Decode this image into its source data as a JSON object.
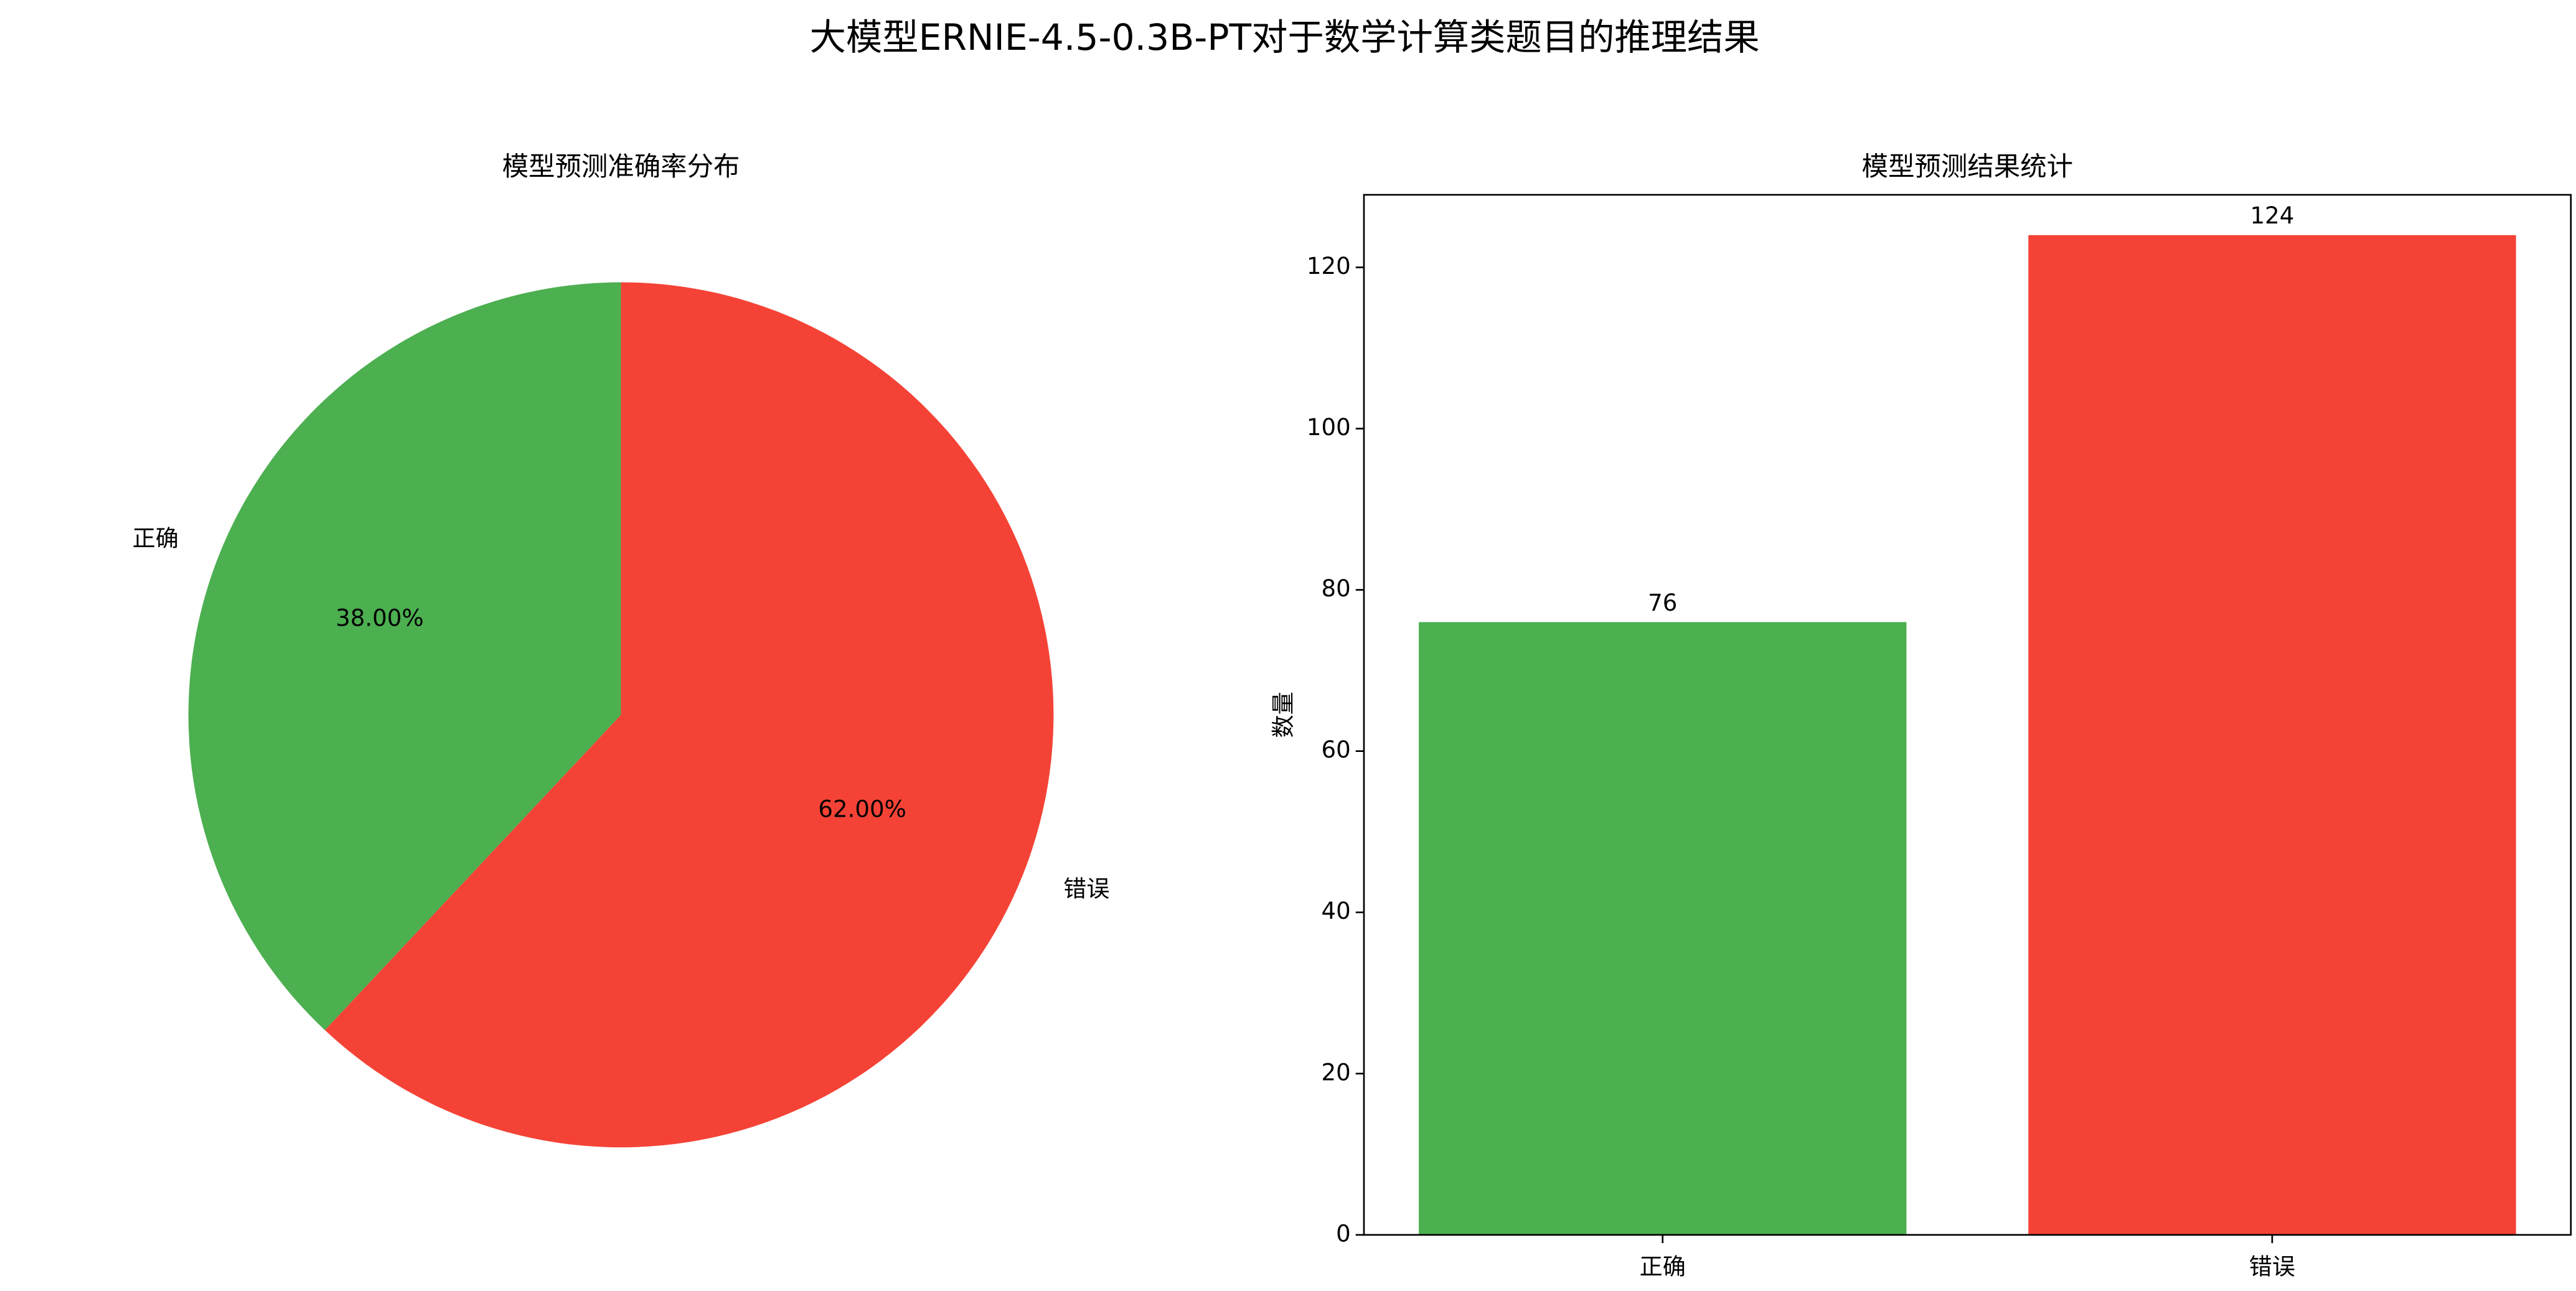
{
  "title": "大模型ERNIE-4.5-0.3B-PT对于数学计算类题目的推理结果",
  "chart_data": [
    {
      "type": "pie",
      "title": "模型预测准确率分布",
      "categories": [
        "正确",
        "错误"
      ],
      "values": [
        38,
        62
      ],
      "value_labels": [
        "38.00%",
        "62.00%"
      ],
      "colors": [
        "#4caf50",
        "#f44336"
      ],
      "start_angle": 90
    },
    {
      "type": "bar",
      "title": "模型预测结果统计",
      "ylabel": "数量",
      "categories": [
        "正确",
        "错误"
      ],
      "values": [
        76,
        124
      ],
      "colors": [
        "#4caf50",
        "#f44336"
      ],
      "ylim": [
        0,
        129
      ],
      "yticks": [
        0,
        20,
        40,
        60,
        80,
        100,
        120
      ]
    }
  ]
}
